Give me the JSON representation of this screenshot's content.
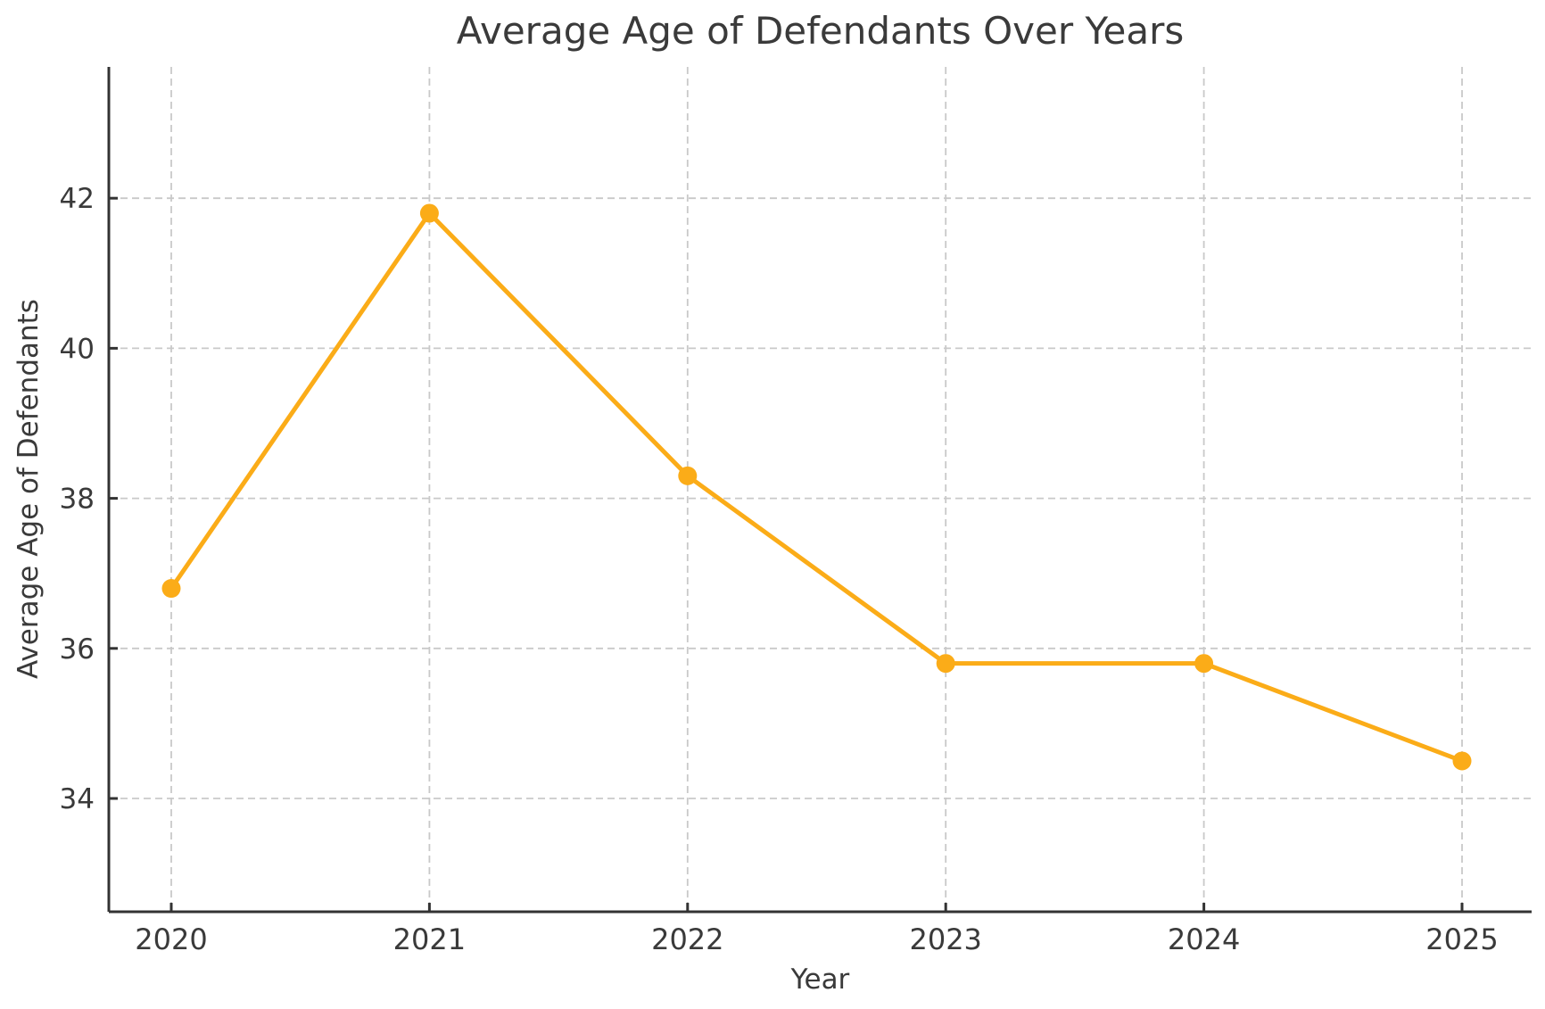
{
  "figure": {
    "title": "Average Age of Defendants Over Years",
    "xlabel": "Year",
    "ylabel": "Average Age of Defendants"
  },
  "chart_data": {
    "type": "line",
    "categories": [
      "2020",
      "2021",
      "2022",
      "2023",
      "2024",
      "2025"
    ],
    "values": [
      36.8,
      41.8,
      38.3,
      35.8,
      35.8,
      34.5
    ],
    "series_name": "Average Age of Defendants",
    "title": "Average Age of Defendants Over Years",
    "xlabel": "Year",
    "ylabel": "Average Age of Defendants",
    "yticks": [
      34,
      36,
      38,
      40,
      42
    ],
    "ylim": [
      32.49,
      43.75
    ],
    "grid": true,
    "grid_style": "dashed",
    "legend": "none",
    "line_color": "#FBAC18",
    "marker": "circle",
    "marker_color": "#FBAC18",
    "background_color": "#FFFFFF",
    "grid_color": "#C9C9C9",
    "spine_color": "#333333",
    "text_color": "#3A3A3A"
  }
}
